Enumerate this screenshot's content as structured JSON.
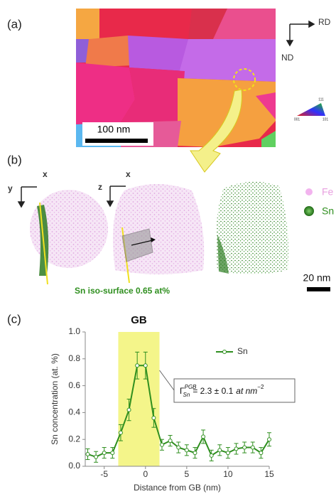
{
  "panels": {
    "a": {
      "label": "(a)",
      "scale_bar": "100 nm",
      "axes": {
        "right": "RD",
        "down": "ND"
      },
      "ipf": {
        "top": "111",
        "left": "001",
        "right": "101"
      }
    },
    "b": {
      "label": "(b)",
      "axes1": {
        "right": "x",
        "down": "y"
      },
      "axes2": {
        "right": "x",
        "down": "z"
      },
      "legend": [
        "Fe",
        "Sn"
      ],
      "caption": "Sn iso-surface 0.65 at%",
      "scale_bar": "20 nm"
    },
    "c": {
      "label": "(c)"
    }
  },
  "chart_data": {
    "type": "line",
    "xlabel": "Distance from GB (nm)",
    "ylabel": "Sn concentration (at. %)",
    "band_label": "GB",
    "band": [
      -3.3,
      1.7
    ],
    "x": [
      -7,
      -6,
      -5,
      -4,
      -3,
      -2,
      -1,
      0,
      1,
      2,
      3,
      4,
      5,
      6,
      7,
      8,
      9,
      10,
      11,
      12,
      13,
      14,
      15
    ],
    "series": [
      {
        "name": "Sn",
        "color": "#2f8f1f",
        "values": [
          0.09,
          0.07,
          0.1,
          0.1,
          0.25,
          0.42,
          0.75,
          0.75,
          0.36,
          0.16,
          0.19,
          0.14,
          0.12,
          0.1,
          0.22,
          0.08,
          0.12,
          0.1,
          0.13,
          0.14,
          0.14,
          0.1,
          0.2
        ],
        "errors": [
          0.04,
          0.04,
          0.04,
          0.04,
          0.06,
          0.08,
          0.1,
          0.1,
          0.07,
          0.04,
          0.04,
          0.04,
          0.04,
          0.04,
          0.05,
          0.04,
          0.04,
          0.04,
          0.04,
          0.04,
          0.04,
          0.04,
          0.05
        ]
      }
    ],
    "xlim": [
      -7.3,
      15
    ],
    "ylim": [
      0,
      1
    ],
    "xticks": [
      -5,
      0,
      5,
      10,
      15
    ],
    "yticks": [
      {
        "value": 0,
        "label": "0.0"
      },
      0.2,
      0.4,
      0.6,
      0.8,
      {
        "value": 1,
        "label": "1.0"
      }
    ],
    "legend": "upper right",
    "annotation": {
      "symbol": "Γ",
      "sub": "Sn",
      "sup": "PGB",
      "text": "= 2.3 ± 0.1",
      "unit": "at nm",
      "unit_exp": "−2"
    }
  }
}
